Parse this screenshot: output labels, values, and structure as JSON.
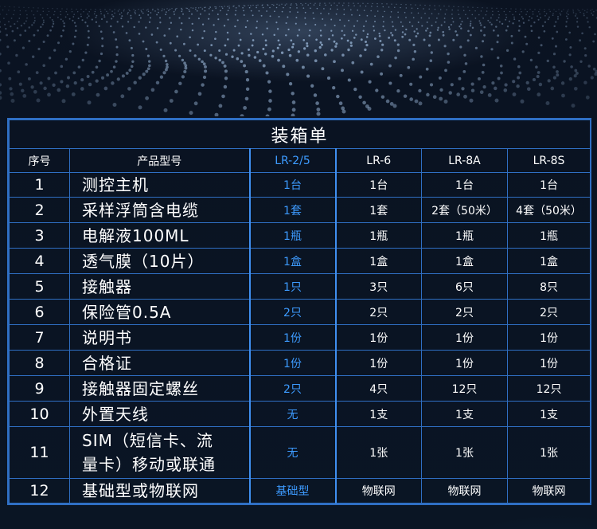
{
  "table": {
    "title": "装箱单",
    "headers": [
      "序号",
      "产品型号",
      "LR-2/5",
      "LR-6",
      "LR-8A",
      "LR-8S"
    ],
    "rows": [
      {
        "no": "1",
        "product": "测控主机",
        "lr25": "1台",
        "lr6": "1台",
        "lr8a": "1台",
        "lr8s": "1台"
      },
      {
        "no": "2",
        "product": "采样浮筒含电缆",
        "lr25": "1套",
        "lr6": "1套",
        "lr8a": "2套（50米）",
        "lr8s": "4套（50米）"
      },
      {
        "no": "3",
        "product": "电解液100ML",
        "lr25": "1瓶",
        "lr6": "1瓶",
        "lr8a": "1瓶",
        "lr8s": "1瓶"
      },
      {
        "no": "4",
        "product": "透气膜（10片）",
        "lr25": "1盒",
        "lr6": "1盒",
        "lr8a": "1盒",
        "lr8s": "1盒"
      },
      {
        "no": "5",
        "product": "接触器",
        "lr25": "1只",
        "lr6": "3只",
        "lr8a": "6只",
        "lr8s": "8只"
      },
      {
        "no": "6",
        "product": "保险管0.5A",
        "lr25": "2只",
        "lr6": "2只",
        "lr8a": "2只",
        "lr8s": "2只"
      },
      {
        "no": "7",
        "product": "说明书",
        "lr25": "1份",
        "lr6": "1份",
        "lr8a": "1份",
        "lr8s": "1份"
      },
      {
        "no": "8",
        "product": "合格证",
        "lr25": "1份",
        "lr6": "1份",
        "lr8a": "1份",
        "lr8s": "1份"
      },
      {
        "no": "9",
        "product": "接触器固定螺丝",
        "lr25": "2只",
        "lr6": "4只",
        "lr8a": "12只",
        "lr8s": "12只"
      },
      {
        "no": "10",
        "product": "外置天线",
        "lr25": "无",
        "lr6": "1支",
        "lr8a": "1支",
        "lr8s": "1支"
      },
      {
        "no": "11",
        "product_line1": "SIM（短信卡、流",
        "product_line2": "量卡）移动或联通",
        "lr25": "无",
        "lr6": "1张",
        "lr8a": "1张",
        "lr8s": "1张"
      },
      {
        "no": "12",
        "product": "基础型或物联网",
        "lr25": "基础型",
        "lr6": "物联网",
        "lr8a": "物联网",
        "lr8s": "物联网"
      }
    ]
  },
  "colors": {
    "border": "#2f6fc4",
    "highlight_text": "#3d9bff",
    "background": "#0a1322",
    "text": "#ffffff"
  }
}
